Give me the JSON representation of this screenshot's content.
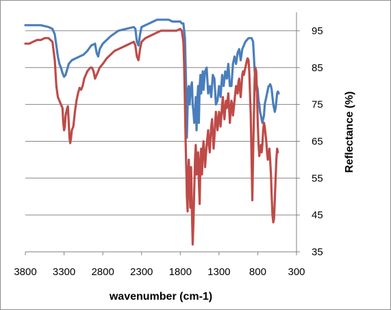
{
  "chart_data": {
    "type": "line",
    "title": "",
    "xlabel": "wavenumber (cm-1)",
    "ylabel": "Reflectance (%)",
    "x_reversed": true,
    "xlim": [
      3800,
      300
    ],
    "ylim": [
      35,
      100
    ],
    "x_ticks": [
      3800,
      3300,
      2800,
      2300,
      1800,
      1300,
      800,
      300
    ],
    "y_ticks": [
      35,
      45,
      55,
      65,
      75,
      85,
      95
    ],
    "y_axis_side": "right",
    "grid": "horizontal",
    "legend": "none",
    "series": [
      {
        "color": "#4a7ebb",
        "points": [
          [
            3800,
            96.5
          ],
          [
            3700,
            96.5
          ],
          [
            3600,
            96.5
          ],
          [
            3500,
            96
          ],
          [
            3450,
            95.5
          ],
          [
            3420,
            94
          ],
          [
            3400,
            91
          ],
          [
            3380,
            88
          ],
          [
            3360,
            86
          ],
          [
            3340,
            85
          ],
          [
            3320,
            83.5
          ],
          [
            3300,
            82.5
          ],
          [
            3280,
            83
          ],
          [
            3260,
            84.5
          ],
          [
            3240,
            86
          ],
          [
            3200,
            87
          ],
          [
            3150,
            87.5
          ],
          [
            3100,
            88
          ],
          [
            3050,
            88.5
          ],
          [
            3000,
            89.5
          ],
          [
            2950,
            91
          ],
          [
            2900,
            91.5
          ],
          [
            2880,
            89
          ],
          [
            2860,
            88
          ],
          [
            2840,
            90
          ],
          [
            2800,
            91.5
          ],
          [
            2700,
            93.5
          ],
          [
            2600,
            95
          ],
          [
            2500,
            95.5
          ],
          [
            2400,
            96
          ],
          [
            2380,
            95.5
          ],
          [
            2360,
            92
          ],
          [
            2340,
            91
          ],
          [
            2320,
            94
          ],
          [
            2300,
            96
          ],
          [
            2250,
            96.5
          ],
          [
            2200,
            97
          ],
          [
            2150,
            97.5
          ],
          [
            2100,
            98
          ],
          [
            2050,
            98
          ],
          [
            2000,
            98
          ],
          [
            1950,
            98
          ],
          [
            1900,
            97.5
          ],
          [
            1850,
            97.5
          ],
          [
            1800,
            97.5
          ],
          [
            1780,
            97
          ],
          [
            1760,
            97
          ],
          [
            1740,
            93
          ],
          [
            1725,
            80
          ],
          [
            1715,
            66
          ],
          [
            1700,
            79
          ],
          [
            1690,
            80
          ],
          [
            1680,
            75
          ],
          [
            1670,
            78
          ],
          [
            1660,
            80
          ],
          [
            1650,
            81
          ],
          [
            1640,
            75
          ],
          [
            1630,
            73
          ],
          [
            1620,
            70
          ],
          [
            1610,
            72
          ],
          [
            1600,
            77
          ],
          [
            1590,
            68
          ],
          [
            1580,
            76
          ],
          [
            1570,
            80
          ],
          [
            1560,
            70
          ],
          [
            1550,
            80
          ],
          [
            1540,
            83
          ],
          [
            1530,
            78
          ],
          [
            1510,
            84
          ],
          [
            1500,
            79
          ],
          [
            1480,
            84
          ],
          [
            1460,
            85
          ],
          [
            1440,
            78
          ],
          [
            1420,
            80
          ],
          [
            1400,
            77
          ],
          [
            1380,
            83
          ],
          [
            1360,
            82
          ],
          [
            1340,
            75
          ],
          [
            1320,
            76
          ],
          [
            1300,
            80
          ],
          [
            1280,
            77
          ],
          [
            1260,
            83
          ],
          [
            1240,
            80
          ],
          [
            1220,
            84
          ],
          [
            1200,
            82
          ],
          [
            1180,
            86
          ],
          [
            1160,
            80
          ],
          [
            1140,
            80
          ],
          [
            1120,
            86
          ],
          [
            1100,
            88
          ],
          [
            1080,
            86
          ],
          [
            1060,
            89
          ],
          [
            1040,
            90
          ],
          [
            1020,
            87
          ],
          [
            1000,
            90
          ],
          [
            980,
            91
          ],
          [
            960,
            92
          ],
          [
            940,
            92.5
          ],
          [
            920,
            93
          ],
          [
            900,
            93
          ],
          [
            880,
            93
          ],
          [
            860,
            92
          ],
          [
            850,
            88
          ],
          [
            840,
            84
          ],
          [
            830,
            82
          ],
          [
            820,
            79
          ],
          [
            810,
            80
          ],
          [
            800,
            79
          ],
          [
            790,
            76
          ],
          [
            780,
            75
          ],
          [
            770,
            73
          ],
          [
            760,
            72
          ],
          [
            750,
            71
          ],
          [
            740,
            70
          ],
          [
            730,
            71
          ],
          [
            720,
            72
          ],
          [
            710,
            75
          ],
          [
            700,
            76
          ],
          [
            690,
            77
          ],
          [
            680,
            78
          ],
          [
            670,
            79
          ],
          [
            660,
            80
          ],
          [
            650,
            80
          ],
          [
            640,
            80.5
          ],
          [
            630,
            80
          ],
          [
            620,
            79
          ],
          [
            610,
            77
          ],
          [
            600,
            75
          ],
          [
            590,
            74
          ],
          [
            580,
            73
          ],
          [
            570,
            74
          ],
          [
            560,
            76
          ],
          [
            550,
            78
          ],
          [
            540,
            78.5
          ],
          [
            530,
            78
          ]
        ]
      },
      {
        "color": "#be4b48",
        "points": [
          [
            3800,
            91.5
          ],
          [
            3750,
            91.5
          ],
          [
            3700,
            92
          ],
          [
            3650,
            92.5
          ],
          [
            3600,
            92.5
          ],
          [
            3550,
            93
          ],
          [
            3500,
            93
          ],
          [
            3450,
            92
          ],
          [
            3420,
            87
          ],
          [
            3400,
            80
          ],
          [
            3380,
            77
          ],
          [
            3360,
            76
          ],
          [
            3340,
            75
          ],
          [
            3320,
            74
          ],
          [
            3310,
            70
          ],
          [
            3300,
            68
          ],
          [
            3290,
            69
          ],
          [
            3280,
            72
          ],
          [
            3260,
            74
          ],
          [
            3250,
            74.5
          ],
          [
            3240,
            70
          ],
          [
            3230,
            66
          ],
          [
            3220,
            64.5
          ],
          [
            3210,
            66
          ],
          [
            3200,
            68
          ],
          [
            3180,
            69
          ],
          [
            3160,
            73
          ],
          [
            3140,
            76
          ],
          [
            3120,
            78
          ],
          [
            3100,
            79.5
          ],
          [
            3080,
            79
          ],
          [
            3060,
            80
          ],
          [
            3040,
            82
          ],
          [
            3020,
            83
          ],
          [
            3000,
            84
          ],
          [
            2980,
            84.5
          ],
          [
            2960,
            85
          ],
          [
            2940,
            85
          ],
          [
            2920,
            84
          ],
          [
            2900,
            82
          ],
          [
            2880,
            83
          ],
          [
            2860,
            84
          ],
          [
            2840,
            85
          ],
          [
            2800,
            86
          ],
          [
            2750,
            87.5
          ],
          [
            2700,
            88.5
          ],
          [
            2650,
            89.5
          ],
          [
            2600,
            90
          ],
          [
            2550,
            90.5
          ],
          [
            2500,
            91
          ],
          [
            2450,
            91.5
          ],
          [
            2400,
            92
          ],
          [
            2380,
            91
          ],
          [
            2360,
            88
          ],
          [
            2340,
            87
          ],
          [
            2320,
            90
          ],
          [
            2300,
            92
          ],
          [
            2250,
            93
          ],
          [
            2200,
            93.5
          ],
          [
            2150,
            94
          ],
          [
            2100,
            94.5
          ],
          [
            2050,
            95
          ],
          [
            2000,
            95
          ],
          [
            1950,
            95
          ],
          [
            1900,
            95
          ],
          [
            1850,
            95
          ],
          [
            1800,
            95.5
          ],
          [
            1780,
            95
          ],
          [
            1760,
            92
          ],
          [
            1750,
            86
          ],
          [
            1740,
            75
          ],
          [
            1730,
            64
          ],
          [
            1720,
            56
          ],
          [
            1715,
            50
          ],
          [
            1705,
            46
          ],
          [
            1700,
            55
          ],
          [
            1690,
            60
          ],
          [
            1680,
            52
          ],
          [
            1670,
            47
          ],
          [
            1660,
            58
          ],
          [
            1650,
            46
          ],
          [
            1640,
            37
          ],
          [
            1630,
            43
          ],
          [
            1620,
            52
          ],
          [
            1610,
            60
          ],
          [
            1600,
            64
          ],
          [
            1590,
            56
          ],
          [
            1580,
            58
          ],
          [
            1570,
            62
          ],
          [
            1560,
            54
          ],
          [
            1550,
            48
          ],
          [
            1540,
            60
          ],
          [
            1530,
            63
          ],
          [
            1520,
            56
          ],
          [
            1510,
            62
          ],
          [
            1500,
            65
          ],
          [
            1490,
            62
          ],
          [
            1480,
            58
          ],
          [
            1470,
            61
          ],
          [
            1460,
            64
          ],
          [
            1450,
            66
          ],
          [
            1440,
            68
          ],
          [
            1430,
            64
          ],
          [
            1420,
            62
          ],
          [
            1410,
            66
          ],
          [
            1400,
            69
          ],
          [
            1390,
            71
          ],
          [
            1380,
            67
          ],
          [
            1370,
            63
          ],
          [
            1360,
            66
          ],
          [
            1350,
            70
          ],
          [
            1340,
            73
          ],
          [
            1330,
            71
          ],
          [
            1320,
            68
          ],
          [
            1310,
            70
          ],
          [
            1300,
            73
          ],
          [
            1290,
            72
          ],
          [
            1280,
            69
          ],
          [
            1270,
            72
          ],
          [
            1260,
            75
          ],
          [
            1250,
            77
          ],
          [
            1240,
            73
          ],
          [
            1230,
            71
          ],
          [
            1220,
            74
          ],
          [
            1210,
            76
          ],
          [
            1200,
            74
          ],
          [
            1190,
            76
          ],
          [
            1180,
            78
          ],
          [
            1170,
            74
          ],
          [
            1160,
            70
          ],
          [
            1150,
            73
          ],
          [
            1140,
            76
          ],
          [
            1130,
            75
          ],
          [
            1120,
            72
          ],
          [
            1110,
            74
          ],
          [
            1100,
            76
          ],
          [
            1090,
            78
          ],
          [
            1080,
            80
          ],
          [
            1070,
            79
          ],
          [
            1060,
            78
          ],
          [
            1050,
            81
          ],
          [
            1040,
            82
          ],
          [
            1030,
            79
          ],
          [
            1020,
            77
          ],
          [
            1010,
            80
          ],
          [
            1000,
            83
          ],
          [
            990,
            84
          ],
          [
            980,
            83
          ],
          [
            970,
            84
          ],
          [
            960,
            85
          ],
          [
            950,
            86
          ],
          [
            940,
            87
          ],
          [
            930,
            87.5
          ],
          [
            920,
            87
          ],
          [
            910,
            84
          ],
          [
            900,
            78
          ],
          [
            890,
            72
          ],
          [
            880,
            60
          ],
          [
            870,
            49
          ],
          [
            860,
            61
          ],
          [
            850,
            72
          ],
          [
            840,
            82
          ],
          [
            830,
            85
          ],
          [
            820,
            84
          ],
          [
            810,
            78
          ],
          [
            800,
            70
          ],
          [
            790,
            64
          ],
          [
            780,
            61
          ],
          [
            770,
            63
          ],
          [
            760,
            64
          ],
          [
            750,
            62
          ],
          [
            740,
            64
          ],
          [
            730,
            68
          ],
          [
            720,
            70
          ],
          [
            710,
            69
          ],
          [
            700,
            67
          ],
          [
            690,
            65
          ],
          [
            680,
            62
          ],
          [
            670,
            60
          ],
          [
            660,
            61
          ],
          [
            650,
            63
          ],
          [
            640,
            60
          ],
          [
            630,
            56
          ],
          [
            620,
            50
          ],
          [
            610,
            45
          ],
          [
            600,
            43
          ],
          [
            590,
            44
          ],
          [
            580,
            49
          ],
          [
            570,
            55
          ],
          [
            560,
            60
          ],
          [
            550,
            63
          ],
          [
            540,
            62
          ]
        ]
      }
    ]
  }
}
